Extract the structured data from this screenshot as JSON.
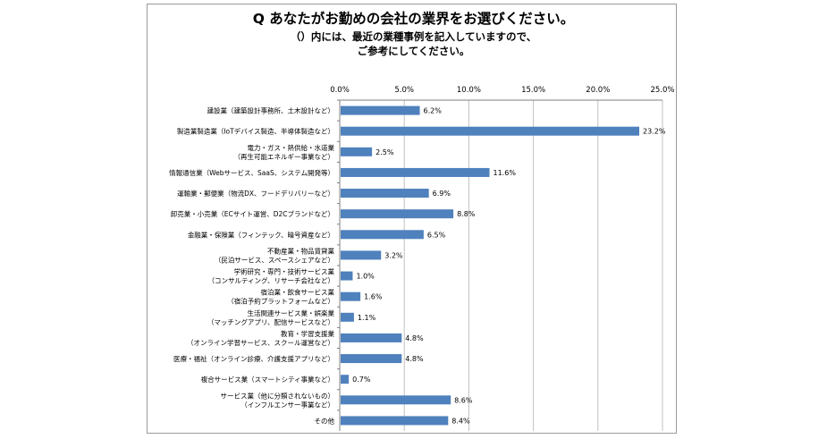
{
  "title": {
    "line1": "Q あなたがお勤めの会社の業界をお選びください。",
    "line2": "（）内には、最近の業種事例を記入していますので、",
    "line3": "ご参考にしてください。"
  },
  "colors": {
    "bar": "#4f81bd",
    "grid": "#c0c0c0",
    "frame": "#9a9a9a"
  },
  "chart_data": {
    "type": "bar",
    "orientation": "horizontal",
    "xlim": [
      0,
      25
    ],
    "xticks": [
      "0.0%",
      "5.0%",
      "10.0%",
      "15.0%",
      "20.0%",
      "25.0%"
    ],
    "grid": true,
    "axis_position": "top",
    "categories": [
      [
        "建設業（建築設計事務所、土木設計など）"
      ],
      [
        "製造業製造業（IoTデバイス製造、半導体製造など）"
      ],
      [
        "電力・ガス・熱供給・水道業",
        "（再生可能エネルギー事業など）"
      ],
      [
        "情報通信業（Webサービス、SaaS、システム開発等）"
      ],
      [
        "運輸業・郵便業（物流DX、フードデリバリーなど）"
      ],
      [
        "卸売業・小売業（ECサイト運営、D2Cブランドなど）"
      ],
      [
        "金融業・保険業（フィンテック、暗号資産など）"
      ],
      [
        "不動産業・物品賃貸業",
        "（民泊サービス、スペースシェアなど）"
      ],
      [
        "学術研究・専門・技術サービス業",
        "（コンサルティング、リサーチ会社など）"
      ],
      [
        "宿泊業・飲食サービス業",
        "（宿泊予約プラットフォームなど）"
      ],
      [
        "生活関連サービス業・娯楽業",
        "（マッチングアプリ、配信サービスなど）"
      ],
      [
        "教育・学習支援業",
        "（オンライン学習サービス、スクール運営など）"
      ],
      [
        "医療・福祉（オンライン診療、介護支援アプリなど）"
      ],
      [
        "複合サービス業（スマートシティ事業など）"
      ],
      [
        "サービス業（他に分類されないもの）",
        "（インフルエンサー事業など）"
      ],
      [
        "その他"
      ]
    ],
    "values": [
      6.2,
      23.2,
      2.5,
      11.6,
      6.9,
      8.8,
      6.5,
      3.2,
      1.0,
      1.6,
      1.1,
      4.8,
      4.8,
      0.7,
      8.6,
      8.4
    ],
    "value_labels": [
      "6.2%",
      "23.2%",
      "2.5%",
      "11.6%",
      "6.9%",
      "8.8%",
      "6.5%",
      "3.2%",
      "1.0%",
      "1.6%",
      "1.1%",
      "4.8%",
      "4.8%",
      "0.7%",
      "8.6%",
      "8.4%"
    ]
  }
}
